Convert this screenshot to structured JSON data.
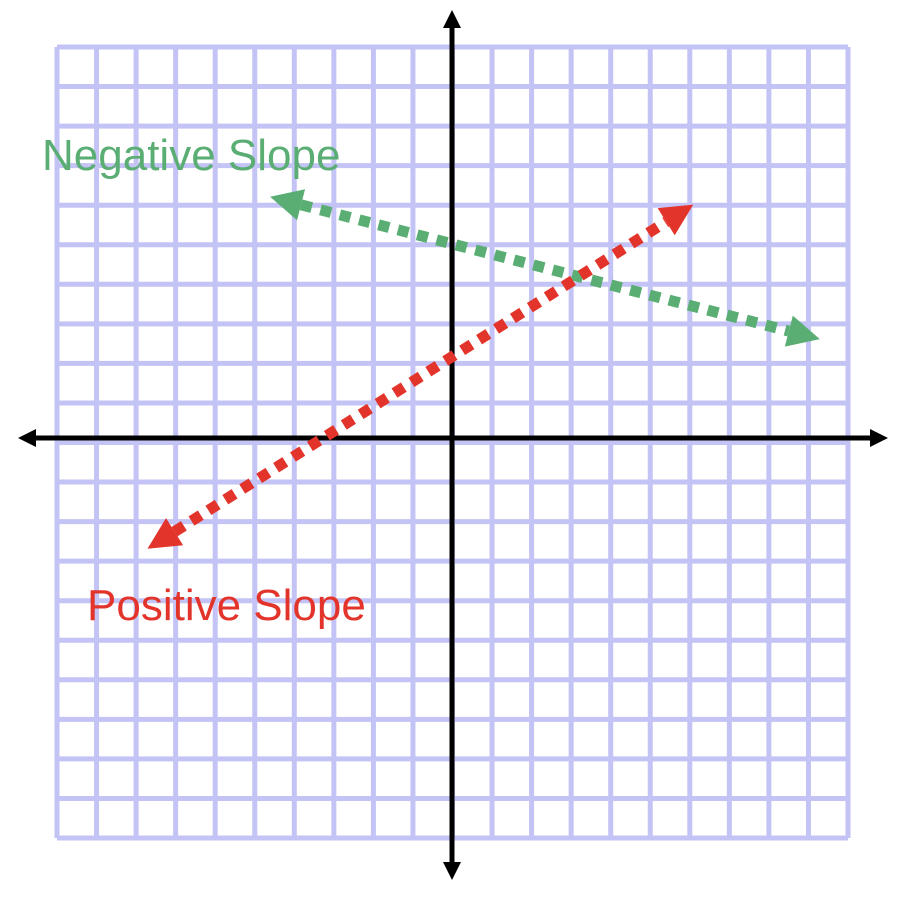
{
  "diagram": {
    "grid": {
      "x_range": [
        -10,
        10
      ],
      "y_range": [
        -10,
        10
      ],
      "color": "#c3c3f5"
    },
    "axes": {
      "color": "#000000"
    },
    "lines": [
      {
        "id": "negative",
        "label": "Negative Slope",
        "color": "#5aae74",
        "start": [
          -4.6,
          6.1
        ],
        "end": [
          9.3,
          2.5
        ]
      },
      {
        "id": "positive",
        "label": "Positive Slope",
        "color": "#e3342b",
        "start": [
          -7.7,
          -2.8
        ],
        "end": [
          6.1,
          5.9
        ]
      }
    ]
  }
}
